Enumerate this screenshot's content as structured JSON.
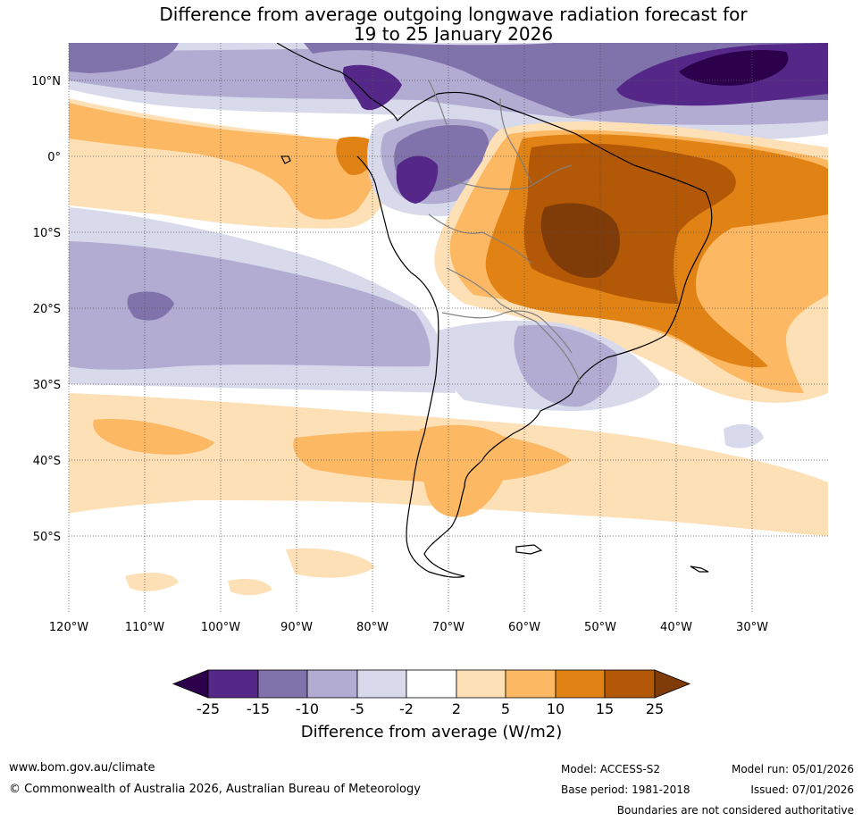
{
  "title": {
    "line1": "Difference from average outgoing longwave radiation forecast for",
    "line2": "19 to 25 January 2026"
  },
  "axes": {
    "lat_labels": [
      "10°N",
      "0°",
      "10°S",
      "20°S",
      "30°S",
      "40°S",
      "50°S"
    ],
    "lon_labels": [
      "120°W",
      "110°W",
      "100°W",
      "90°W",
      "80°W",
      "70°W",
      "60°W",
      "50°W",
      "40°W",
      "30°W"
    ],
    "lat_range": [
      15,
      -60
    ],
    "lon_range": [
      -120,
      -20
    ]
  },
  "colorbar": {
    "label": "Difference from average (W/m2)",
    "ticks": [
      "-25",
      "-15",
      "-10",
      "-5",
      "-2",
      "2",
      "5",
      "10",
      "15",
      "25"
    ],
    "colors": [
      "#2d004b",
      "#542788",
      "#8073ac",
      "#b2abd2",
      "#d8daeb",
      "#ffffff",
      "#fee0b6",
      "#fdb863",
      "#e08214",
      "#b35806",
      "#7f3b08"
    ]
  },
  "footer": {
    "website": "www.bom.gov.au/climate",
    "copyright": "© Commonwealth of Australia 2026, Australian Bureau of Meteorology",
    "model": "Model: ACCESS-S2",
    "base_period": "Base period: 1981-2018",
    "model_run": "Model run: 05/01/2026",
    "issued": "Issued: 07/01/2026",
    "disclaimer": "Boundaries are not considered authoritative"
  }
}
